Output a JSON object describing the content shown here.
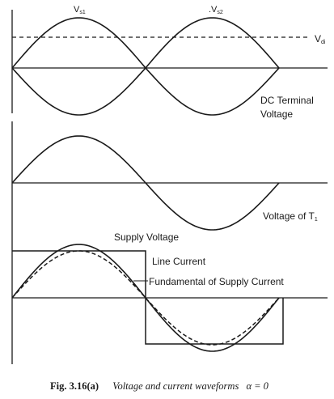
{
  "panel1": {
    "vs1_main": "V",
    "vs1_sub": "s1",
    "vs2_main": ".V",
    "vs2_sub": "s2",
    "vdi_main": "V",
    "vdi_sub": "di",
    "caption_line1": "DC Terminal",
    "caption_line2": "Voltage"
  },
  "panel2": {
    "label_main": "Voltage of T",
    "label_sub": "1"
  },
  "panel3": {
    "supply_voltage": "Supply Voltage",
    "line_current": "Line Current",
    "fundamental": "Fundamental of Supply Current"
  },
  "figure": {
    "number": "Fig. 3.16(a)",
    "title": "Voltage and current waveforms",
    "alpha_eq": "α = 0"
  },
  "colors": {
    "ink": "#1a1a1a",
    "background": "#ffffff"
  }
}
